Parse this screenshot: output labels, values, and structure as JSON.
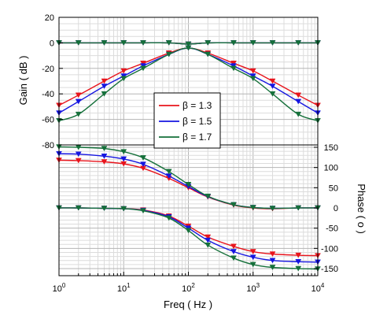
{
  "chart_data": {
    "type": "line",
    "title": "",
    "xlabel": "Freq ( Hz )",
    "xscale": "log",
    "xlim": [
      1,
      10000
    ],
    "x_ticks": [
      {
        "base": "10",
        "exp": "0"
      },
      {
        "base": "10",
        "exp": "1"
      },
      {
        "base": "10",
        "exp": "2"
      },
      {
        "base": "10",
        "exp": "3"
      },
      {
        "base": "10",
        "exp": "4"
      }
    ],
    "gain_axis": {
      "label": "Gain ( dB )",
      "side": "left",
      "ylim": [
        -80,
        20
      ],
      "ticks": [
        "20",
        "0",
        "-20",
        "-40",
        "-60",
        "-80"
      ]
    },
    "phase_axis": {
      "label": "Phase ( o )",
      "side": "right",
      "ylim": [
        -160,
        160
      ],
      "ticks": [
        "150",
        "100",
        "50",
        "0",
        "-50",
        "-100",
        "-150"
      ]
    },
    "grid": true,
    "legend": {
      "placement": "center",
      "entries": [
        "β = 1.3",
        "β = 1.5",
        "β = 1.7"
      ]
    },
    "colors": {
      "beta_1_3": "#e8141c",
      "beta_1_5": "#1515e0",
      "beta_1_7": "#15703a"
    },
    "series": [
      {
        "name": "β = 1.3",
        "color": "#e8141c",
        "panel": "gain",
        "kind": "flat",
        "marker": "triangle-down",
        "x": [
          1,
          2,
          5,
          10,
          20,
          50,
          100,
          200,
          500,
          1000,
          2000,
          5000,
          10000
        ],
        "values": [
          0,
          0,
          0,
          0,
          0,
          0,
          -1,
          0,
          0,
          0,
          0,
          0,
          0
        ]
      },
      {
        "name": "β = 1.5",
        "color": "#1515e0",
        "panel": "gain",
        "kind": "flat",
        "marker": "triangle-down",
        "x": [
          1,
          2,
          5,
          10,
          20,
          50,
          100,
          200,
          500,
          1000,
          2000,
          5000,
          10000
        ],
        "values": [
          0,
          0,
          0,
          0,
          0,
          0,
          -1,
          0,
          0,
          0,
          0,
          0,
          0
        ]
      },
      {
        "name": "β = 1.7",
        "color": "#15703a",
        "panel": "gain",
        "kind": "flat",
        "marker": "triangle-down",
        "x": [
          1,
          2,
          5,
          10,
          20,
          50,
          100,
          200,
          500,
          1000,
          2000,
          5000,
          10000
        ],
        "values": [
          0,
          0,
          0,
          0,
          0,
          0,
          -1,
          0,
          0,
          0,
          0,
          0,
          0
        ]
      },
      {
        "name": "β = 1.3",
        "color": "#e8141c",
        "panel": "gain",
        "kind": "bandpass",
        "marker": "triangle-down",
        "x": [
          1,
          2,
          5,
          10,
          20,
          50,
          100,
          200,
          500,
          1000,
          2000,
          5000,
          10000
        ],
        "values": [
          -49,
          -41,
          -30,
          -22,
          -16,
          -8,
          -4,
          -8,
          -16,
          -22,
          -30,
          -41,
          -49
        ]
      },
      {
        "name": "β = 1.5",
        "color": "#1515e0",
        "panel": "gain",
        "kind": "bandpass",
        "marker": "triangle-down",
        "x": [
          1,
          2,
          5,
          10,
          20,
          50,
          100,
          200,
          500,
          1000,
          2000,
          5000,
          10000
        ],
        "values": [
          -55,
          -46,
          -34,
          -26,
          -18,
          -9,
          -4,
          -9,
          -18,
          -26,
          -34,
          -46,
          -55
        ]
      },
      {
        "name": "β = 1.7",
        "color": "#15703a",
        "panel": "gain",
        "kind": "bandpass",
        "marker": "triangle-down",
        "x": [
          1,
          2,
          5,
          10,
          20,
          50,
          100,
          200,
          500,
          1000,
          2000,
          5000,
          10000
        ],
        "values": [
          -61,
          -56,
          -40,
          -28,
          -20,
          -9,
          -4,
          -9,
          -20,
          -28,
          -40,
          -56,
          -61
        ]
      },
      {
        "name": "β = 1.3",
        "color": "#e8141c",
        "panel": "phase",
        "kind": "bandpass",
        "marker": "triangle-down",
        "x": [
          1,
          2,
          5,
          10,
          20,
          50,
          100,
          200,
          500,
          1000,
          2000,
          5000,
          10000
        ],
        "values": [
          118,
          117,
          114,
          109,
          98,
          73,
          50,
          27,
          7,
          0,
          -2,
          0,
          0
        ]
      },
      {
        "name": "β = 1.5",
        "color": "#1515e0",
        "panel": "phase",
        "kind": "bandpass",
        "marker": "triangle-down",
        "x": [
          1,
          2,
          5,
          10,
          20,
          50,
          100,
          200,
          500,
          1000,
          2000,
          5000,
          10000
        ],
        "values": [
          134,
          133,
          128,
          121,
          108,
          79,
          53,
          28,
          8,
          1,
          -1,
          0,
          0
        ]
      },
      {
        "name": "β = 1.7",
        "color": "#15703a",
        "panel": "phase",
        "kind": "bandpass",
        "marker": "triangle-down",
        "x": [
          1,
          2,
          5,
          10,
          20,
          50,
          100,
          200,
          500,
          1000,
          2000,
          5000,
          10000
        ],
        "values": [
          151,
          150,
          147,
          139,
          124,
          90,
          58,
          29,
          8,
          1,
          -1,
          0,
          0
        ]
      },
      {
        "name": "β = 1.3",
        "color": "#e8141c",
        "panel": "phase",
        "kind": "flat",
        "marker": "triangle-down",
        "x": [
          1,
          2,
          5,
          10,
          20,
          50,
          100,
          200,
          500,
          1000,
          2000,
          5000,
          10000
        ],
        "values": [
          0,
          0,
          -1,
          -2,
          -5,
          -20,
          -45,
          -72,
          -95,
          -108,
          -114,
          -117,
          -118
        ]
      },
      {
        "name": "β = 1.5",
        "color": "#1515e0",
        "panel": "phase",
        "kind": "flat",
        "marker": "triangle-down",
        "x": [
          1,
          2,
          5,
          10,
          20,
          50,
          100,
          200,
          500,
          1000,
          2000,
          5000,
          10000
        ],
        "values": [
          0,
          0,
          -1,
          -2,
          -6,
          -22,
          -50,
          -80,
          -108,
          -122,
          -130,
          -133,
          -134
        ]
      },
      {
        "name": "β = 1.7",
        "color": "#15703a",
        "panel": "phase",
        "kind": "flat",
        "marker": "triangle-down",
        "x": [
          1,
          2,
          5,
          10,
          20,
          50,
          100,
          200,
          500,
          1000,
          2000,
          5000,
          10000
        ],
        "values": [
          0,
          0,
          -1,
          -2,
          -7,
          -25,
          -56,
          -92,
          -124,
          -140,
          -147,
          -150,
          -151
        ]
      }
    ]
  }
}
